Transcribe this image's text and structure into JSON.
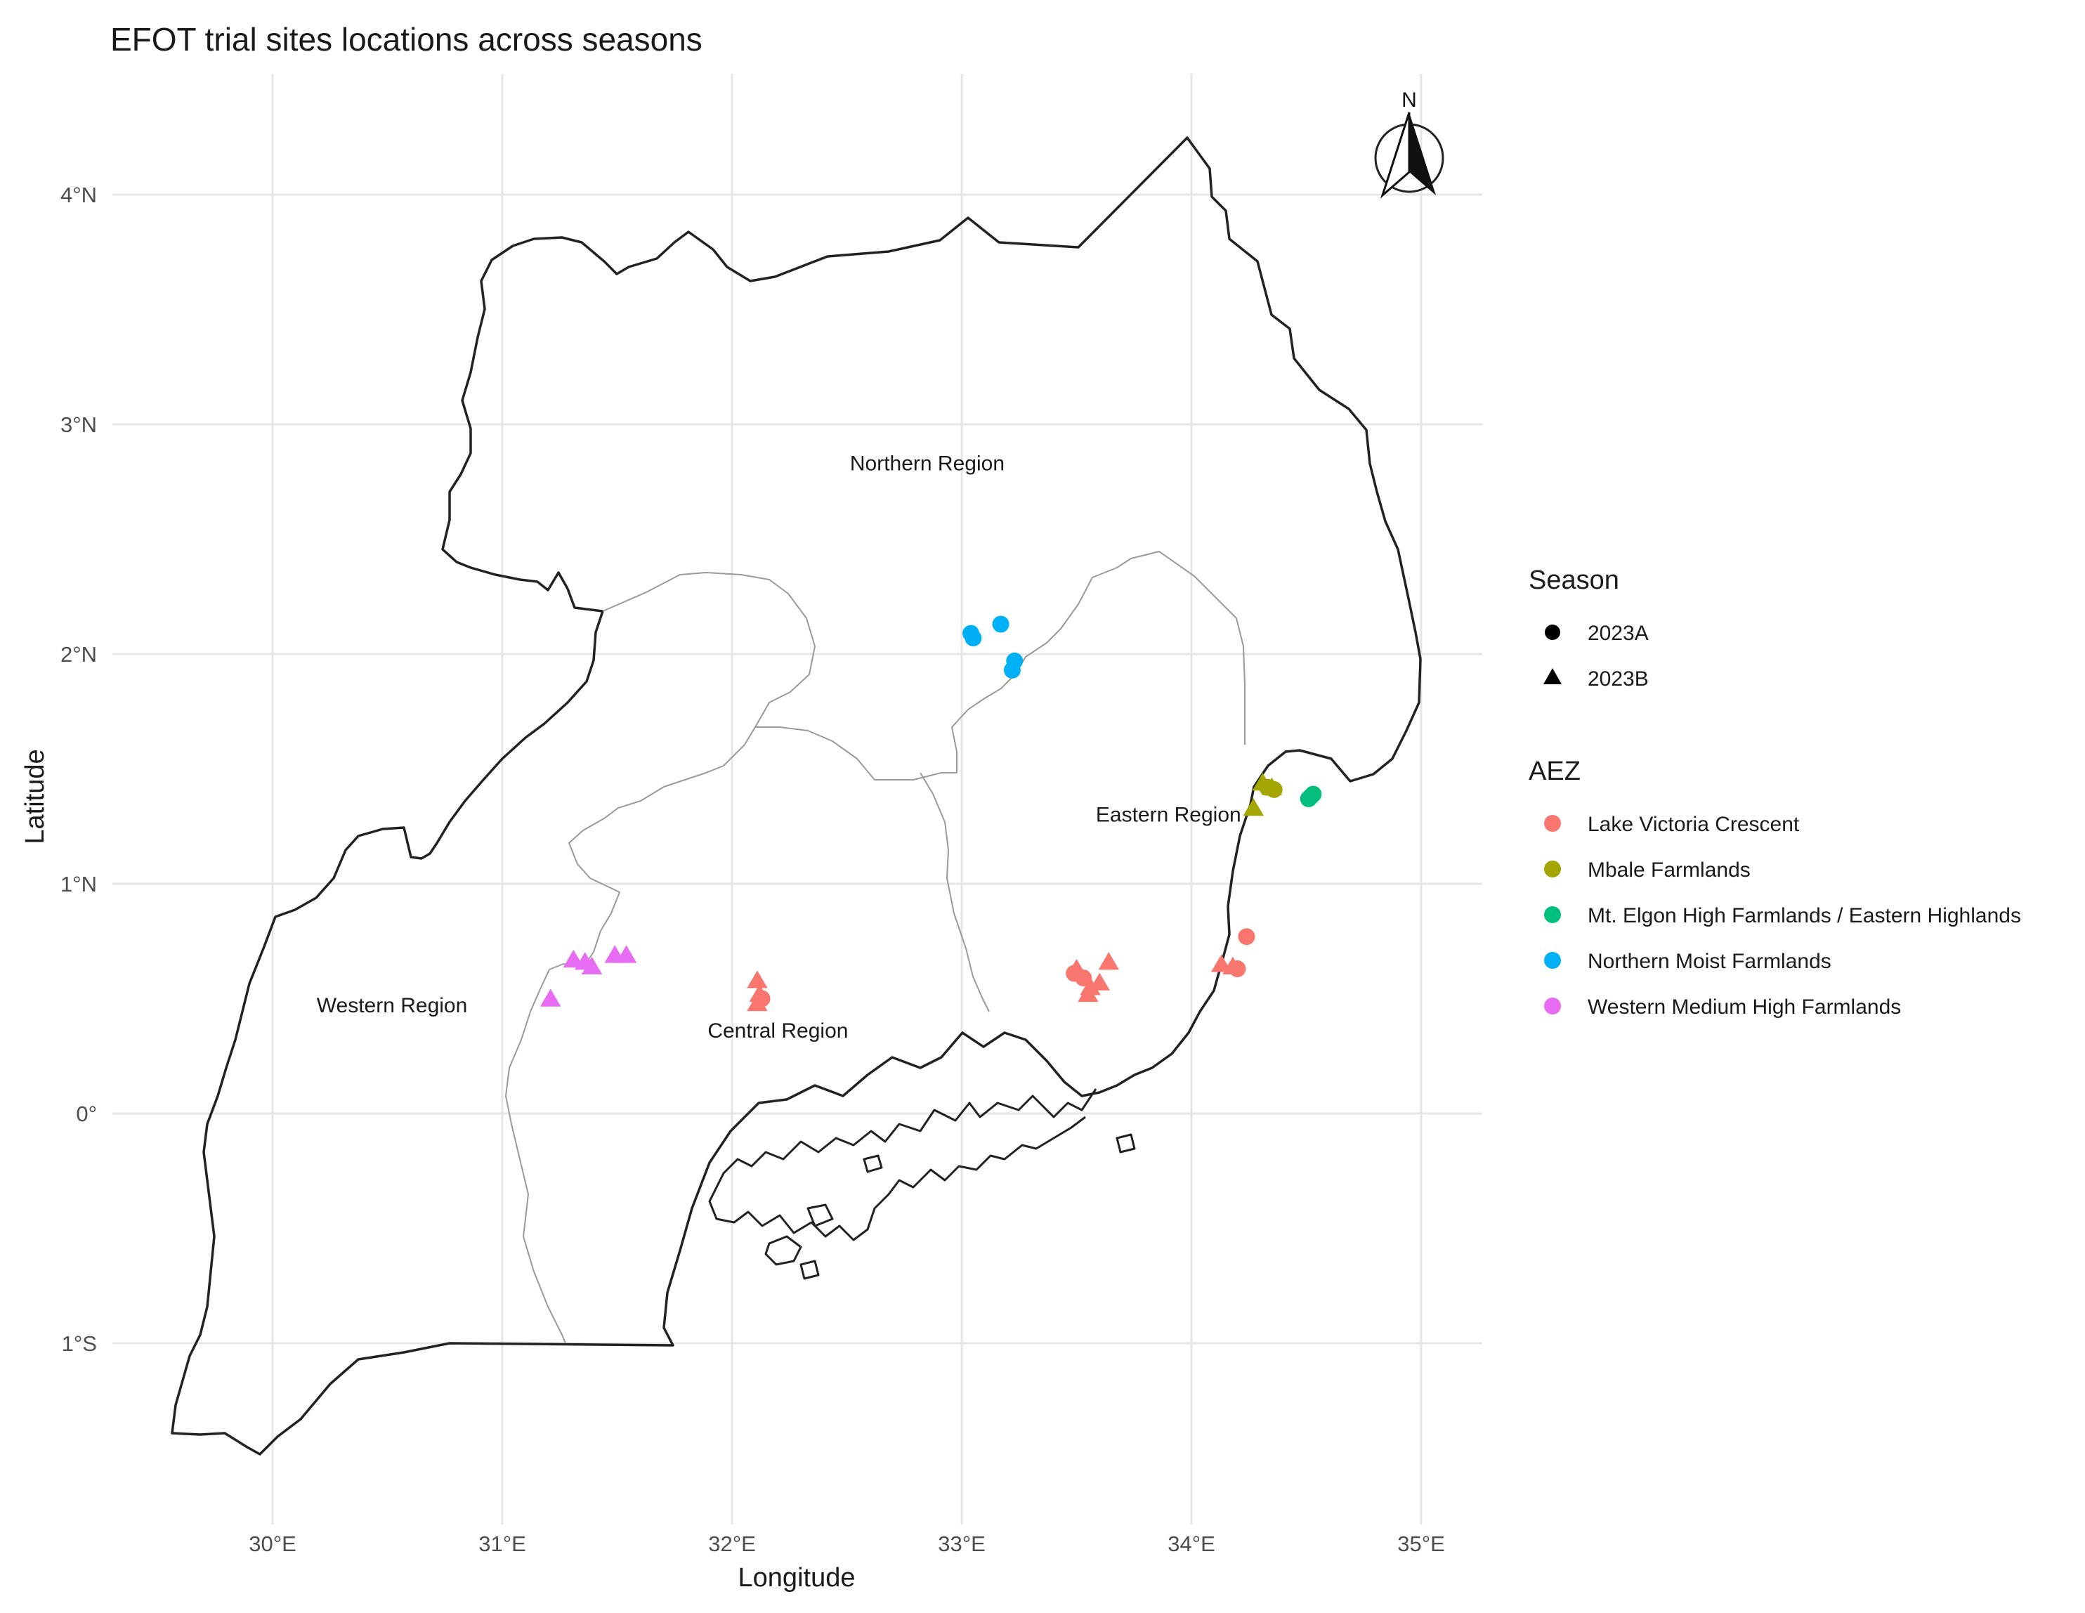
{
  "title": "EFOT trial sites locations across seasons",
  "axes": {
    "x_label": "Longitude",
    "y_label": "Latitude",
    "x_ticks": [
      {
        "value": 30,
        "label": "30°E"
      },
      {
        "value": 31,
        "label": "31°E"
      },
      {
        "value": 32,
        "label": "32°E"
      },
      {
        "value": 33,
        "label": "33°E"
      },
      {
        "value": 34,
        "label": "34°E"
      },
      {
        "value": 35,
        "label": "35°E"
      }
    ],
    "y_ticks": [
      {
        "value": 4,
        "label": "4°N"
      },
      {
        "value": 3,
        "label": "3°N"
      },
      {
        "value": 2,
        "label": "2°N"
      },
      {
        "value": 1,
        "label": "1°N"
      },
      {
        "value": 0,
        "label": "0°"
      },
      {
        "value": -1,
        "label": "1°S"
      }
    ],
    "x_range": [
      29.0,
      35.2
    ],
    "y_range": [
      -1.75,
      4.55
    ]
  },
  "compass": {
    "label": "N"
  },
  "regions": [
    {
      "name": "Northern Region",
      "lon": 32.85,
      "lat": 2.8
    },
    {
      "name": "Eastern Region",
      "lon": 33.9,
      "lat": 1.27
    },
    {
      "name": "Western Region",
      "lon": 30.52,
      "lat": 0.44
    },
    {
      "name": "Central Region",
      "lon": 32.2,
      "lat": 0.33
    }
  ],
  "legend": {
    "season_title": "Season",
    "season_items": [
      {
        "label": "2023A",
        "shape": "circle"
      },
      {
        "label": "2023B",
        "shape": "triangle"
      }
    ],
    "aez_title": "AEZ",
    "aez_items": [
      {
        "label": "Lake Victoria Crescent",
        "color": "#F8766D"
      },
      {
        "label": "Mbale Farmlands",
        "color": "#A3A500"
      },
      {
        "label": "Mt. Elgon High Farmlands / Eastern Highlands",
        "color": "#00BF7D"
      },
      {
        "label": "Northern Moist Farmlands",
        "color": "#00B0F6"
      },
      {
        "label": "Western Medium High Farmlands",
        "color": "#E76BF3"
      }
    ]
  },
  "chart_data": {
    "type": "scatter",
    "title": "EFOT trial sites locations across seasons",
    "xlabel": "Longitude",
    "ylabel": "Latitude",
    "xlim": [
      29.0,
      35.2
    ],
    "ylim": [
      -1.75,
      4.55
    ],
    "grid": true,
    "legend_position": "right",
    "points": [
      {
        "lon": 33.04,
        "lat": 2.09,
        "season": "2023A",
        "aez": "Northern Moist Farmlands"
      },
      {
        "lon": 33.05,
        "lat": 2.07,
        "season": "2023A",
        "aez": "Northern Moist Farmlands"
      },
      {
        "lon": 33.17,
        "lat": 2.13,
        "season": "2023A",
        "aez": "Northern Moist Farmlands"
      },
      {
        "lon": 33.23,
        "lat": 1.97,
        "season": "2023A",
        "aez": "Northern Moist Farmlands"
      },
      {
        "lon": 33.22,
        "lat": 1.93,
        "season": "2023A",
        "aez": "Northern Moist Farmlands"
      },
      {
        "lon": 34.33,
        "lat": 1.42,
        "season": "2023A",
        "aez": "Mbale Farmlands"
      },
      {
        "lon": 34.36,
        "lat": 1.41,
        "season": "2023A",
        "aez": "Mbale Farmlands"
      },
      {
        "lon": 34.31,
        "lat": 1.44,
        "season": "2023B",
        "aez": "Mbale Farmlands"
      },
      {
        "lon": 34.35,
        "lat": 1.42,
        "season": "2023B",
        "aez": "Mbale Farmlands"
      },
      {
        "lon": 34.27,
        "lat": 1.33,
        "season": "2023B",
        "aez": "Mbale Farmlands"
      },
      {
        "lon": 34.52,
        "lat": 1.38,
        "season": "2023A",
        "aez": "Mt. Elgon High Farmlands / Eastern Highlands"
      },
      {
        "lon": 34.51,
        "lat": 1.37,
        "season": "2023A",
        "aez": "Mt. Elgon High Farmlands / Eastern Highlands"
      },
      {
        "lon": 34.53,
        "lat": 1.39,
        "season": "2023A",
        "aez": "Mt. Elgon High Farmlands / Eastern Highlands"
      },
      {
        "lon": 34.24,
        "lat": 0.77,
        "season": "2023A",
        "aez": "Lake Victoria Crescent"
      },
      {
        "lon": 33.49,
        "lat": 0.61,
        "season": "2023A",
        "aez": "Lake Victoria Crescent"
      },
      {
        "lon": 33.53,
        "lat": 0.59,
        "season": "2023A",
        "aez": "Lake Victoria Crescent"
      },
      {
        "lon": 33.5,
        "lat": 0.63,
        "season": "2023B",
        "aez": "Lake Victoria Crescent"
      },
      {
        "lon": 33.56,
        "lat": 0.55,
        "season": "2023B",
        "aez": "Lake Victoria Crescent"
      },
      {
        "lon": 33.6,
        "lat": 0.57,
        "season": "2023B",
        "aez": "Lake Victoria Crescent"
      },
      {
        "lon": 33.64,
        "lat": 0.66,
        "season": "2023B",
        "aez": "Lake Victoria Crescent"
      },
      {
        "lon": 33.55,
        "lat": 0.52,
        "season": "2023B",
        "aez": "Lake Victoria Crescent"
      },
      {
        "lon": 34.13,
        "lat": 0.65,
        "season": "2023B",
        "aez": "Lake Victoria Crescent"
      },
      {
        "lon": 34.18,
        "lat": 0.64,
        "season": "2023B",
        "aez": "Lake Victoria Crescent"
      },
      {
        "lon": 34.2,
        "lat": 0.63,
        "season": "2023A",
        "aez": "Lake Victoria Crescent"
      },
      {
        "lon": 32.11,
        "lat": 0.58,
        "season": "2023B",
        "aez": "Lake Victoria Crescent"
      },
      {
        "lon": 32.12,
        "lat": 0.52,
        "season": "2023B",
        "aez": "Lake Victoria Crescent"
      },
      {
        "lon": 32.13,
        "lat": 0.5,
        "season": "2023A",
        "aez": "Lake Victoria Crescent"
      },
      {
        "lon": 32.11,
        "lat": 0.48,
        "season": "2023B",
        "aez": "Lake Victoria Crescent"
      },
      {
        "lon": 31.21,
        "lat": 0.5,
        "season": "2023B",
        "aez": "Western Medium High Farmlands"
      },
      {
        "lon": 31.31,
        "lat": 0.67,
        "season": "2023B",
        "aez": "Western Medium High Farmlands"
      },
      {
        "lon": 31.36,
        "lat": 0.66,
        "season": "2023B",
        "aez": "Western Medium High Farmlands"
      },
      {
        "lon": 31.39,
        "lat": 0.64,
        "season": "2023B",
        "aez": "Western Medium High Farmlands"
      },
      {
        "lon": 31.49,
        "lat": 0.69,
        "season": "2023B",
        "aez": "Western Medium High Farmlands"
      },
      {
        "lon": 31.54,
        "lat": 0.69,
        "season": "2023B",
        "aez": "Western Medium High Farmlands"
      }
    ]
  }
}
